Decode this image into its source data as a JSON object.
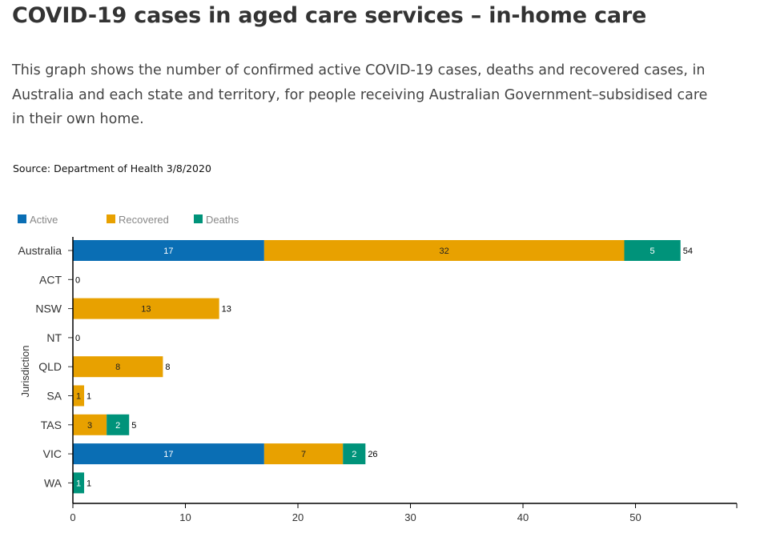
{
  "page": {
    "title": "COVID-19 cases in aged care services – in-home care",
    "description": "This graph shows the number of confirmed active COVID-19 cases, deaths and recovered cases, in Australia and each state and territory, for people receiving Australian Government–subsidised care in their own home.",
    "source": "Source: Department of Health 3/8/2020"
  },
  "chart_data": {
    "type": "bar",
    "orientation": "horizontal",
    "stacked": true,
    "categories": [
      "Australia",
      "ACT",
      "NSW",
      "NT",
      "QLD",
      "SA",
      "TAS",
      "VIC",
      "WA"
    ],
    "series": [
      {
        "name": "Active",
        "color": "#0a6eb4",
        "label_color": "#ffffff",
        "values": [
          17,
          0,
          0,
          0,
          0,
          0,
          0,
          17,
          0
        ]
      },
      {
        "name": "Recovered",
        "color": "#e8a100",
        "label_color": "#222222",
        "values": [
          32,
          0,
          13,
          0,
          8,
          1,
          3,
          7,
          0
        ]
      },
      {
        "name": "Deaths",
        "color": "#00937a",
        "label_color": "#ffffff",
        "values": [
          5,
          0,
          0,
          0,
          0,
          0,
          2,
          2,
          1
        ]
      }
    ],
    "totals": [
      54,
      0,
      13,
      0,
      8,
      1,
      5,
      26,
      1
    ],
    "xlabel": "",
    "ylabel": "Jurisdiction",
    "xlim": [
      0,
      59
    ],
    "xticks": [
      0,
      10,
      20,
      30,
      40,
      50
    ],
    "legend_position": "top-left",
    "grid": false
  }
}
